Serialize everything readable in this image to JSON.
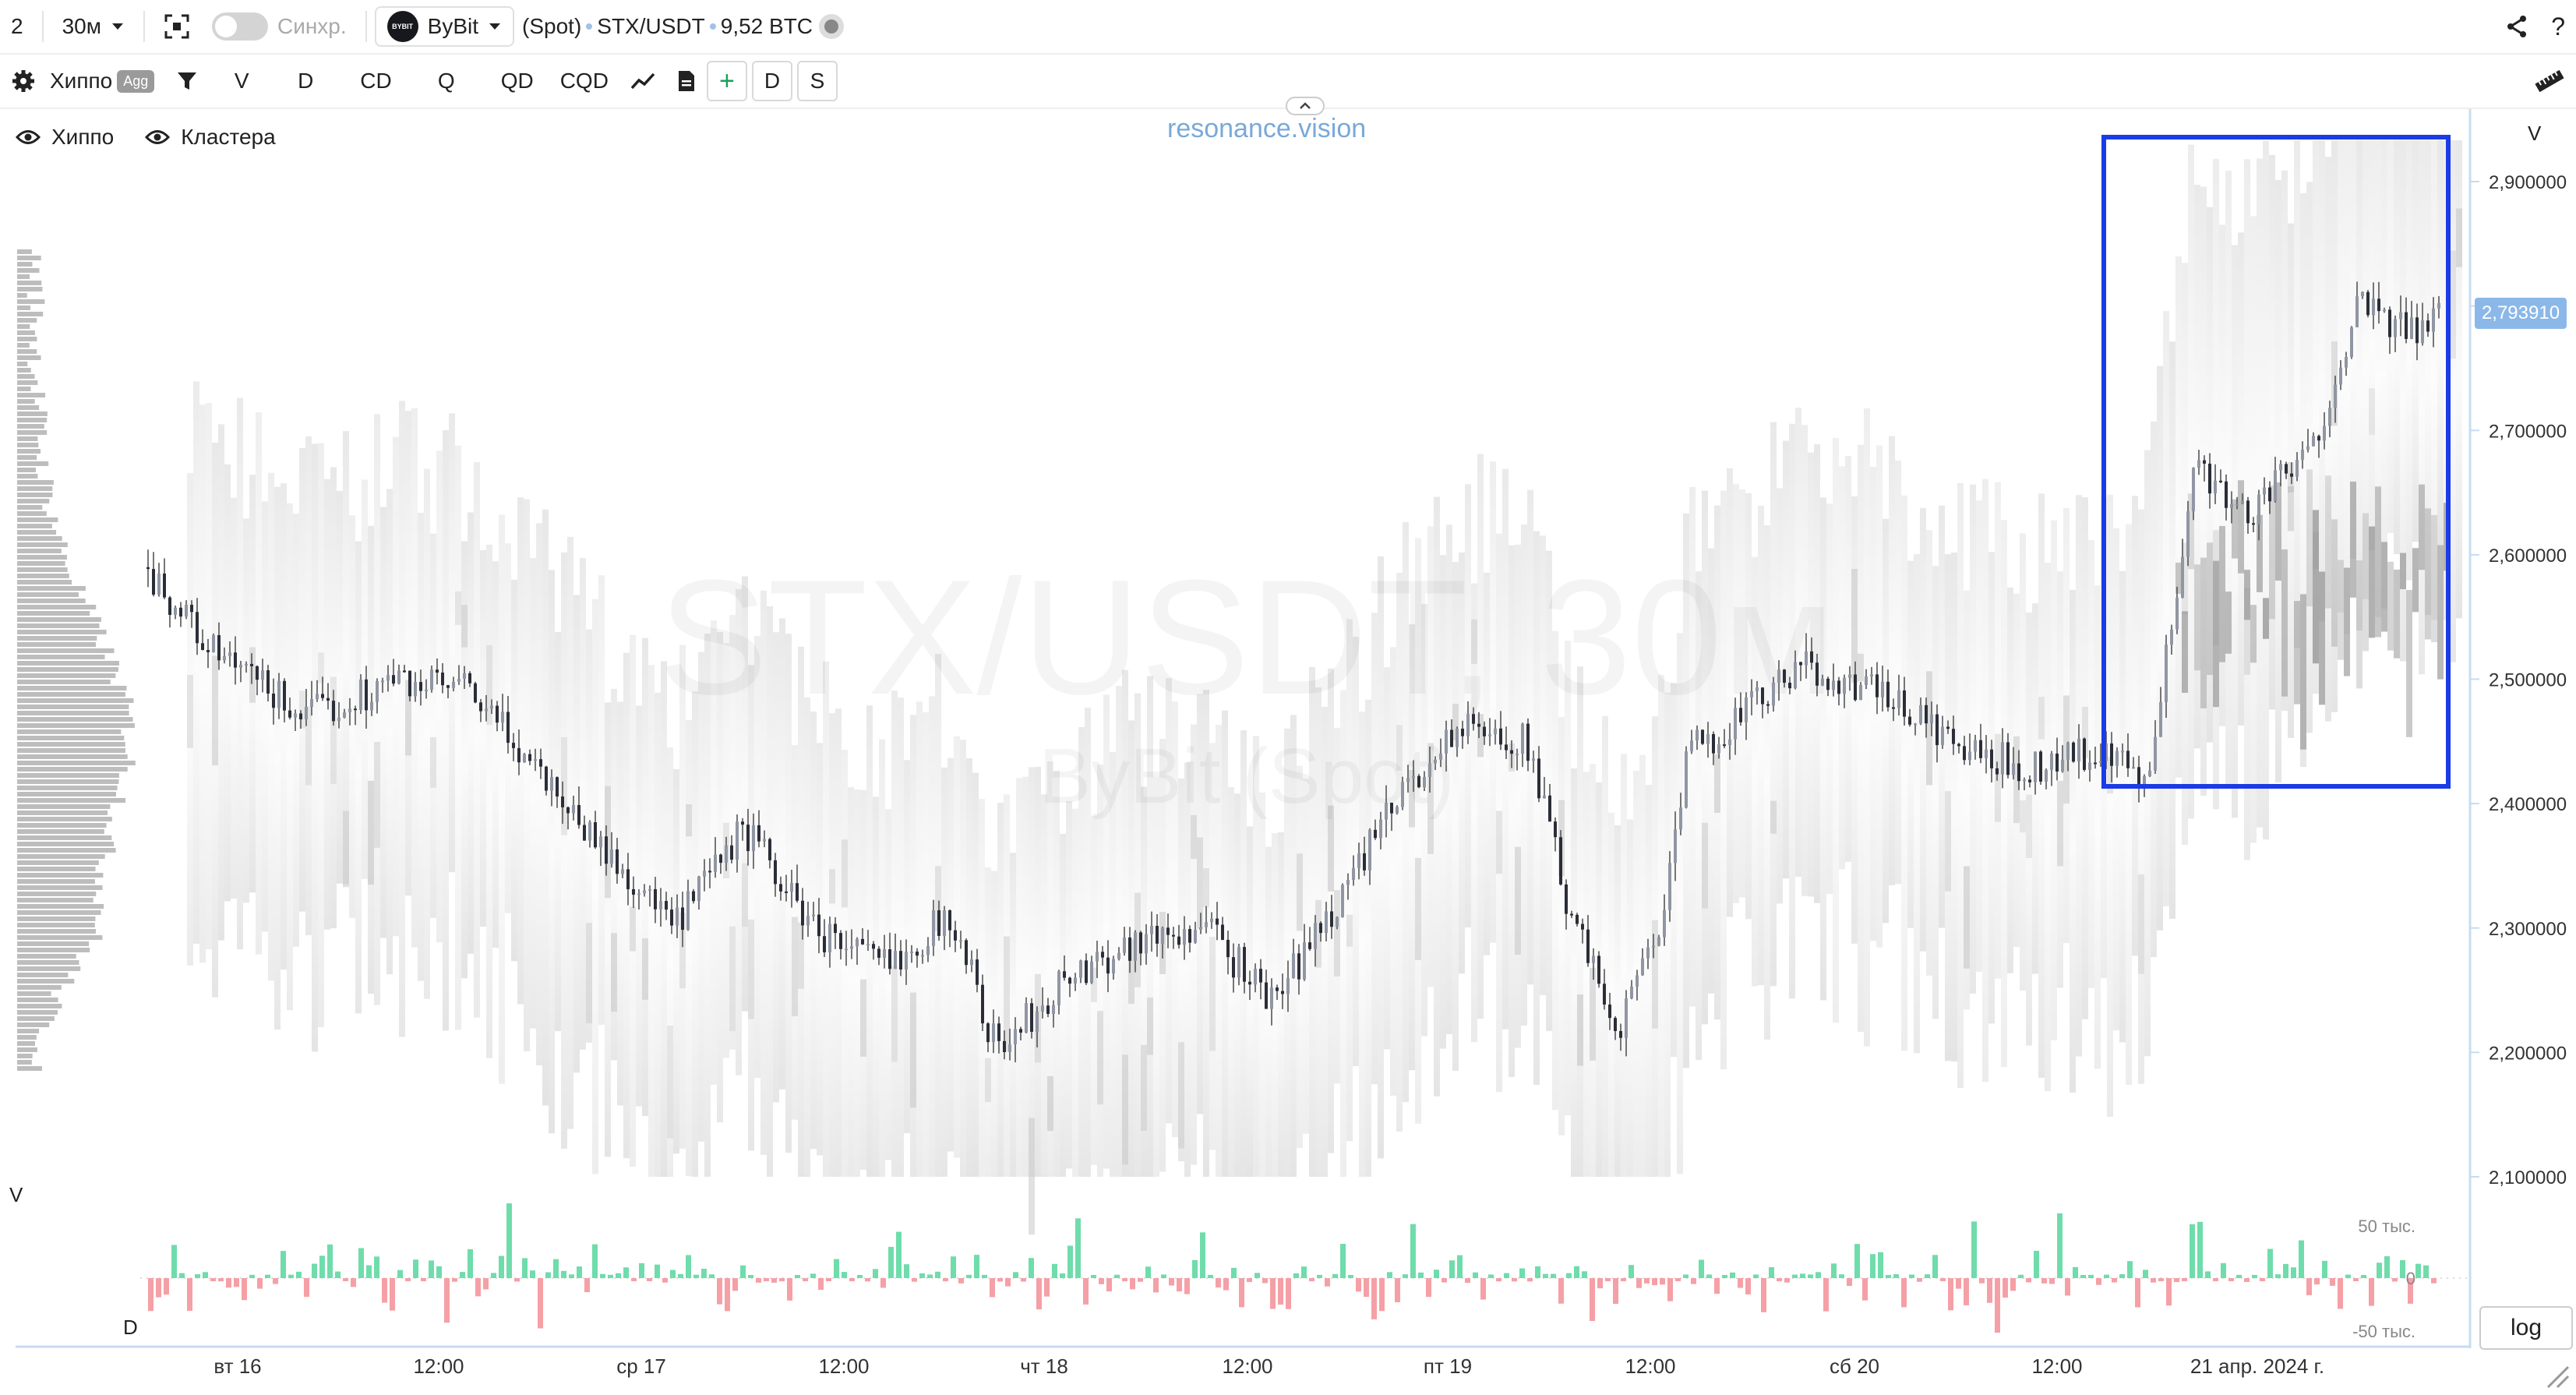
{
  "toolbar": {
    "layout_number": "2",
    "timeframe": "30м",
    "sync_label": "Синхр.",
    "exchange_logo_text": "BYBIT",
    "exchange": "ByBit",
    "market": "(Spot)",
    "pair": "STX/USDT",
    "volume": "9,52 BTC",
    "help": "?"
  },
  "indicators": {
    "hippo_label": "Хиппо",
    "agg_label": "Agg",
    "buttons": [
      "V",
      "D",
      "CD",
      "Q",
      "QD",
      "CQD"
    ],
    "plus": "+",
    "d_label": "D",
    "s_label": "S"
  },
  "layers": {
    "hippo": "Хиппо",
    "clusters": "Кластера"
  },
  "brand": "resonance.vision",
  "watermark": {
    "main": "STX/USDT, 30м",
    "sub": "ByBit (Spot)"
  },
  "colors": {
    "accent": "#1a3be6",
    "bull": "#6fdcab",
    "bear": "#f5a0a6",
    "price_tag": "#8bb8e8",
    "brand": "#79a9d9"
  },
  "price_scale": {
    "label": "V",
    "current_price": "2,793910"
  },
  "volume_pane": {
    "v_label": "V",
    "d_label": "D",
    "ticks": [
      "50 тыс.",
      "0",
      "-50 тыс."
    ]
  },
  "log_label": "log",
  "chart_data": {
    "type": "candlestick",
    "y_ticks": [
      "2,900000",
      "2,800000",
      "2,700000",
      "2,600000",
      "2,500000",
      "2,400000",
      "2,300000",
      "2,200000",
      "2,100000"
    ],
    "x_ticks": [
      "вт 16",
      "12:00",
      "ср 17",
      "12:00",
      "чт 18",
      "12:00",
      "пт 19",
      "12:00",
      "сб 20",
      "12:00",
      "21 апр. 2024 г."
    ],
    "ylim": [
      2.08,
      2.95
    ],
    "price_path": [
      [
        0,
        2.59
      ],
      [
        0.03,
        2.52
      ],
      [
        0.07,
        2.47
      ],
      [
        0.11,
        2.5
      ],
      [
        0.14,
        2.49
      ],
      [
        0.17,
        2.43
      ],
      [
        0.2,
        2.36
      ],
      [
        0.23,
        2.3
      ],
      [
        0.26,
        2.38
      ],
      [
        0.29,
        2.3
      ],
      [
        0.32,
        2.27
      ],
      [
        0.35,
        2.31
      ],
      [
        0.37,
        2.2
      ],
      [
        0.4,
        2.26
      ],
      [
        0.43,
        2.29
      ],
      [
        0.46,
        2.3
      ],
      [
        0.49,
        2.24
      ],
      [
        0.52,
        2.33
      ],
      [
        0.55,
        2.42
      ],
      [
        0.57,
        2.46
      ],
      [
        0.6,
        2.45
      ],
      [
        0.62,
        2.3
      ],
      [
        0.64,
        2.22
      ],
      [
        0.66,
        2.32
      ],
      [
        0.67,
        2.44
      ],
      [
        0.7,
        2.48
      ],
      [
        0.72,
        2.51
      ],
      [
        0.75,
        2.49
      ],
      [
        0.77,
        2.47
      ],
      [
        0.79,
        2.44
      ],
      [
        0.82,
        2.43
      ],
      [
        0.84,
        2.44
      ],
      [
        0.86,
        2.43
      ],
      [
        0.87,
        2.41
      ],
      [
        0.88,
        2.55
      ],
      [
        0.89,
        2.68
      ],
      [
        0.91,
        2.63
      ],
      [
        0.94,
        2.68
      ],
      [
        0.96,
        2.8
      ],
      [
        0.98,
        2.78
      ],
      [
        1,
        2.79
      ]
    ],
    "highlight_box": {
      "t_start": 0.86,
      "t_end": 1.0,
      "price_low": 2.41,
      "price_high": 2.95
    }
  }
}
